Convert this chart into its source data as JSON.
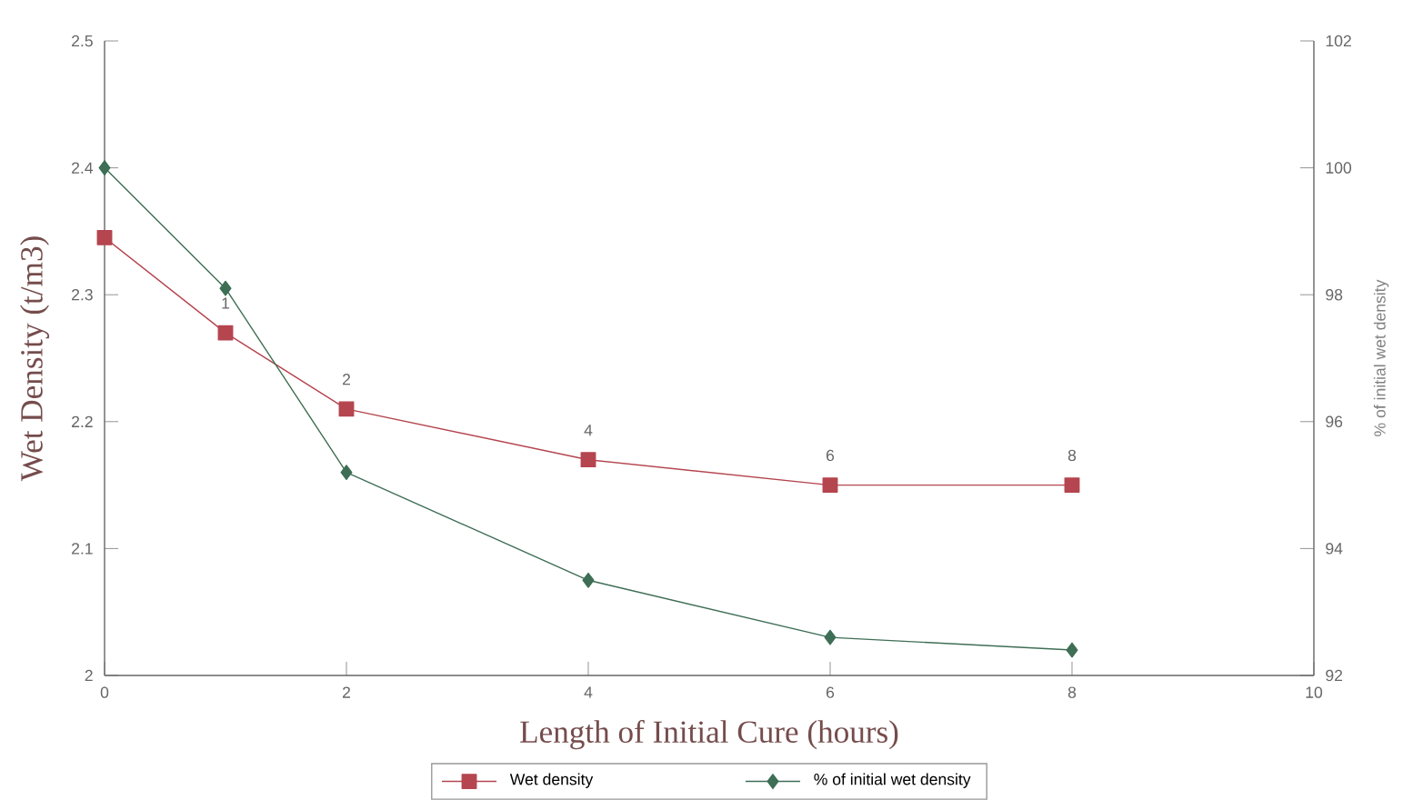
{
  "chart_data": {
    "type": "line",
    "xlabel": "Length of Initial Cure (hours)",
    "ylabel": "Wet Density (t/m3)",
    "y2label": "% of initial wet density",
    "xlim": [
      0,
      10
    ],
    "xticks": [
      0,
      2,
      4,
      6,
      8,
      10
    ],
    "ylim": [
      2,
      2.5
    ],
    "yticks": [
      {
        "value": 2,
        "label": "2"
      },
      {
        "value": 2.1,
        "label": "2.1"
      },
      {
        "value": 2.2,
        "label": "2.2"
      },
      {
        "value": 2.3,
        "label": "2.3"
      },
      {
        "value": 2.4,
        "label": "2.4"
      },
      {
        "value": 2.5,
        "label": "2.5"
      }
    ],
    "y2lim": [
      92,
      102
    ],
    "y2ticks": [
      92,
      94,
      96,
      98,
      100,
      102
    ],
    "legend": "bottom",
    "grid": false,
    "series": [
      {
        "name": "Wet density",
        "color": "#b5454f",
        "marker": "square",
        "x": [
          0,
          1,
          2,
          4,
          6,
          8
        ],
        "values": [
          2.345,
          2.27,
          2.21,
          2.17,
          2.15,
          2.15
        ]
      },
      {
        "name": "% of initial wet density",
        "color": "#3e6e55",
        "marker": "diamond",
        "axis": "y2",
        "x": [
          0,
          1,
          2,
          4,
          6,
          8
        ],
        "values": [
          100,
          98.1,
          95.2,
          93.5,
          92.6,
          92.4
        ]
      }
    ],
    "annotations": [
      {
        "text": "1",
        "x": 1,
        "y": 2.27
      },
      {
        "text": "2",
        "x": 2,
        "y": 2.21
      },
      {
        "text": "4",
        "x": 4,
        "y": 2.17
      },
      {
        "text": "6",
        "x": 6,
        "y": 2.15
      },
      {
        "text": "8",
        "x": 8,
        "y": 2.15
      }
    ]
  }
}
